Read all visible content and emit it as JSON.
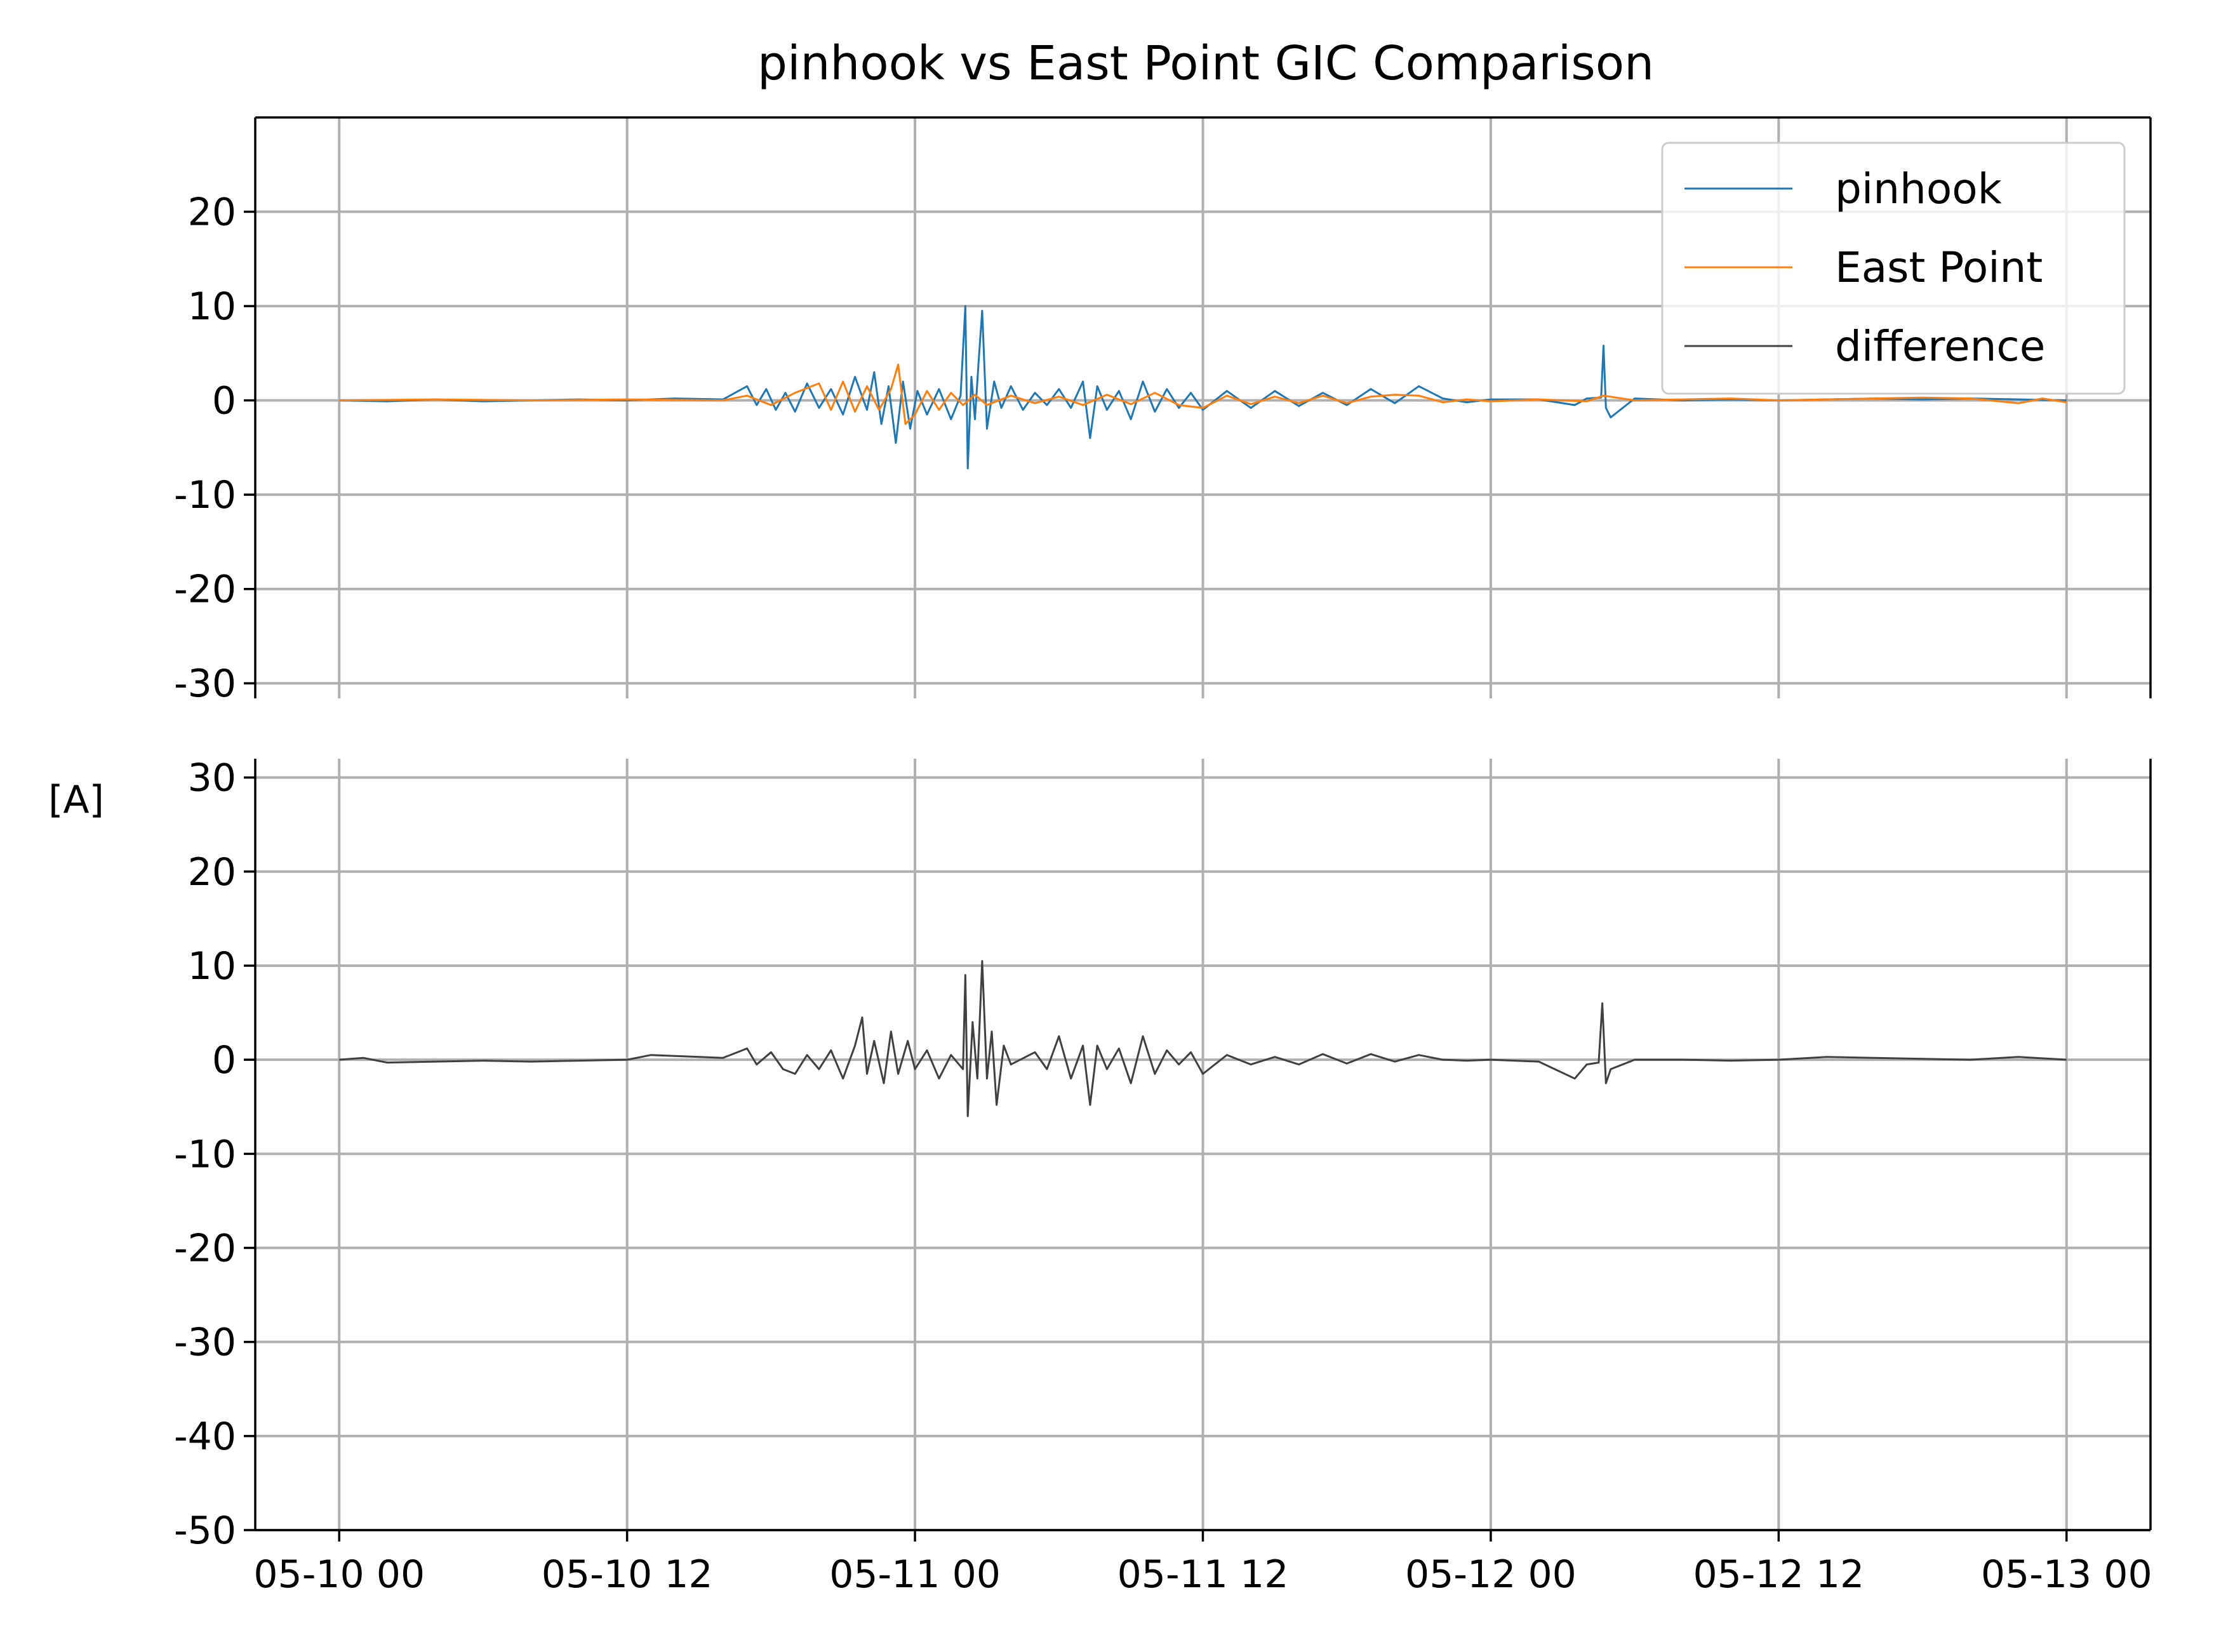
{
  "chart_data": {
    "type": "line",
    "title": "pinhook vs East Point GIC Comparison",
    "ylabel": "[A]",
    "xlabel": "",
    "x_unit": "hours since 05-10 00",
    "x_range": [
      -3.5,
      75.5
    ],
    "x_ticks": [
      {
        "x": 0,
        "label": "05-10 00"
      },
      {
        "x": 12,
        "label": "05-10 12"
      },
      {
        "x": 24,
        "label": "05-11 00"
      },
      {
        "x": 36,
        "label": "05-11 12"
      },
      {
        "x": 48,
        "label": "05-12 00"
      },
      {
        "x": 60,
        "label": "05-12 12"
      },
      {
        "x": 72,
        "label": "05-13 00"
      }
    ],
    "grid": true,
    "legend_position": "top-right",
    "panels": [
      {
        "name": "top",
        "ylim": [
          -30,
          30
        ],
        "yticks": [
          20,
          10,
          0,
          -10,
          -20,
          -30
        ],
        "ytick_labels": [
          "20",
          "10",
          "0",
          "-10",
          "-20",
          "-30"
        ],
        "legend": [
          "pinhook",
          "East Point",
          "difference"
        ],
        "series": [
          {
            "name": "pinhook",
            "color": "#1f77b4",
            "points": [
              [
                0,
                0.0
              ],
              [
                2,
                -0.1
              ],
              [
                4,
                0.1
              ],
              [
                6,
                -0.1
              ],
              [
                8,
                0.0
              ],
              [
                10,
                0.1
              ],
              [
                12,
                0.0
              ],
              [
                14,
                0.2
              ],
              [
                16,
                0.1
              ],
              [
                17,
                1.5
              ],
              [
                17.4,
                -0.5
              ],
              [
                17.8,
                1.2
              ],
              [
                18.2,
                -1.0
              ],
              [
                18.6,
                0.8
              ],
              [
                19,
                -1.2
              ],
              [
                19.5,
                1.8
              ],
              [
                20,
                -0.8
              ],
              [
                20.5,
                1.2
              ],
              [
                21,
                -1.5
              ],
              [
                21.5,
                2.5
              ],
              [
                22,
                -1.0
              ],
              [
                22.3,
                3.0
              ],
              [
                22.6,
                -2.5
              ],
              [
                22.9,
                1.5
              ],
              [
                23.2,
                -4.5
              ],
              [
                23.5,
                2.0
              ],
              [
                23.8,
                -3.0
              ],
              [
                24.1,
                1.0
              ],
              [
                24.5,
                -1.5
              ],
              [
                25,
                1.2
              ],
              [
                25.5,
                -2.0
              ],
              [
                25.9,
                0.5
              ],
              [
                26.1,
                10.0
              ],
              [
                26.2,
                -7.2
              ],
              [
                26.35,
                2.5
              ],
              [
                26.5,
                -2.0
              ],
              [
                26.65,
                4.0
              ],
              [
                26.8,
                9.5
              ],
              [
                27.0,
                -3.0
              ],
              [
                27.3,
                2.0
              ],
              [
                27.6,
                -0.8
              ],
              [
                28,
                1.5
              ],
              [
                28.5,
                -1.0
              ],
              [
                29,
                0.8
              ],
              [
                29.5,
                -0.5
              ],
              [
                30,
                1.2
              ],
              [
                30.5,
                -0.8
              ],
              [
                31,
                2.0
              ],
              [
                31.3,
                -4.0
              ],
              [
                31.6,
                1.5
              ],
              [
                32,
                -1.0
              ],
              [
                32.5,
                1.0
              ],
              [
                33,
                -2.0
              ],
              [
                33.5,
                2.0
              ],
              [
                34,
                -1.2
              ],
              [
                34.5,
                1.2
              ],
              [
                35,
                -0.8
              ],
              [
                35.5,
                0.8
              ],
              [
                36,
                -1.0
              ],
              [
                37,
                1.0
              ],
              [
                38,
                -0.8
              ],
              [
                39,
                1.0
              ],
              [
                40,
                -0.6
              ],
              [
                41,
                0.8
              ],
              [
                42,
                -0.5
              ],
              [
                43,
                1.2
              ],
              [
                44,
                -0.3
              ],
              [
                45,
                1.5
              ],
              [
                46,
                0.2
              ],
              [
                47,
                -0.2
              ],
              [
                48,
                0.1
              ],
              [
                50,
                0.1
              ],
              [
                51.5,
                -0.5
              ],
              [
                52,
                0.2
              ],
              [
                52.6,
                0.3
              ],
              [
                52.7,
                5.8
              ],
              [
                52.8,
                -0.8
              ],
              [
                53,
                -1.8
              ],
              [
                54,
                0.2
              ],
              [
                56,
                0.0
              ],
              [
                58,
                0.1
              ],
              [
                60,
                0.0
              ],
              [
                62,
                0.1
              ],
              [
                64,
                0.2
              ],
              [
                66,
                0.1
              ],
              [
                68,
                0.2
              ],
              [
                70,
                0.1
              ],
              [
                72,
                0.0
              ]
            ]
          },
          {
            "name": "East Point",
            "color": "#ff7f0e",
            "points": [
              [
                0,
                0.0
              ],
              [
                4,
                0.1
              ],
              [
                8,
                0.0
              ],
              [
                12,
                0.1
              ],
              [
                16,
                0.0
              ],
              [
                17,
                0.5
              ],
              [
                18,
                -0.5
              ],
              [
                19,
                0.8
              ],
              [
                20,
                1.8
              ],
              [
                20.5,
                -1.0
              ],
              [
                21,
                2.0
              ],
              [
                21.5,
                -1.2
              ],
              [
                22,
                1.5
              ],
              [
                22.5,
                -1.0
              ],
              [
                23,
                1.2
              ],
              [
                23.3,
                3.8
              ],
              [
                23.6,
                -2.5
              ],
              [
                24,
                -1.5
              ],
              [
                24.5,
                1.0
              ],
              [
                25,
                -1.0
              ],
              [
                25.5,
                0.8
              ],
              [
                26,
                -0.5
              ],
              [
                26.5,
                0.6
              ],
              [
                27,
                -0.5
              ],
              [
                28,
                0.5
              ],
              [
                29,
                -0.3
              ],
              [
                30,
                0.4
              ],
              [
                31,
                -0.5
              ],
              [
                32,
                0.6
              ],
              [
                33,
                -0.4
              ],
              [
                34,
                0.8
              ],
              [
                35,
                -0.5
              ],
              [
                36,
                -0.8
              ],
              [
                37,
                0.5
              ],
              [
                38,
                -0.4
              ],
              [
                39,
                0.4
              ],
              [
                40,
                -0.3
              ],
              [
                41,
                0.5
              ],
              [
                42,
                -0.3
              ],
              [
                43,
                0.4
              ],
              [
                44,
                0.6
              ],
              [
                45,
                0.5
              ],
              [
                46,
                -0.2
              ],
              [
                47,
                0.1
              ],
              [
                48,
                -0.1
              ],
              [
                50,
                0.1
              ],
              [
                52,
                -0.1
              ],
              [
                52.7,
                0.5
              ],
              [
                54,
                0.0
              ],
              [
                56,
                0.1
              ],
              [
                58,
                0.2
              ],
              [
                60,
                0.0
              ],
              [
                62,
                0.1
              ],
              [
                64,
                0.2
              ],
              [
                66,
                0.3
              ],
              [
                68,
                0.2
              ],
              [
                70,
                -0.3
              ],
              [
                71,
                0.2
              ],
              [
                72,
                -0.2
              ]
            ]
          }
        ]
      },
      {
        "name": "bottom",
        "ylim": [
          -50,
          30
        ],
        "yticks": [
          30,
          20,
          10,
          0,
          -10,
          -20,
          -30,
          -40,
          -50
        ],
        "ytick_labels": [
          "30",
          "20",
          "10",
          "0",
          "-10",
          "-20",
          "-30",
          "-40",
          "-50"
        ],
        "series": [
          {
            "name": "difference",
            "color": "#404040",
            "points": [
              [
                0,
                0.0
              ],
              [
                1,
                0.2
              ],
              [
                2,
                -0.3
              ],
              [
                4,
                -0.2
              ],
              [
                6,
                -0.1
              ],
              [
                8,
                -0.2
              ],
              [
                10,
                -0.1
              ],
              [
                12,
                0.0
              ],
              [
                13,
                0.5
              ],
              [
                14,
                0.4
              ],
              [
                16,
                0.2
              ],
              [
                17,
                1.2
              ],
              [
                17.4,
                -0.5
              ],
              [
                18,
                0.8
              ],
              [
                18.5,
                -1.0
              ],
              [
                19,
                -1.5
              ],
              [
                19.5,
                0.5
              ],
              [
                20,
                -1.0
              ],
              [
                20.5,
                1.0
              ],
              [
                21,
                -2.0
              ],
              [
                21.5,
                1.5
              ],
              [
                21.8,
                4.5
              ],
              [
                22,
                -1.5
              ],
              [
                22.3,
                2.0
              ],
              [
                22.7,
                -2.5
              ],
              [
                23,
                3.0
              ],
              [
                23.3,
                -1.5
              ],
              [
                23.7,
                2.0
              ],
              [
                24,
                -1.0
              ],
              [
                24.5,
                1.0
              ],
              [
                25,
                -2.0
              ],
              [
                25.5,
                0.5
              ],
              [
                26,
                -1.0
              ],
              [
                26.1,
                9.0
              ],
              [
                26.2,
                -6.0
              ],
              [
                26.4,
                4.0
              ],
              [
                26.6,
                -2.0
              ],
              [
                26.8,
                10.5
              ],
              [
                27.0,
                -2.0
              ],
              [
                27.2,
                3.0
              ],
              [
                27.4,
                -4.8
              ],
              [
                27.7,
                1.5
              ],
              [
                28,
                -0.5
              ],
              [
                29,
                0.8
              ],
              [
                29.5,
                -1.0
              ],
              [
                30,
                2.5
              ],
              [
                30.5,
                -2.0
              ],
              [
                31,
                1.5
              ],
              [
                31.3,
                -4.8
              ],
              [
                31.6,
                1.5
              ],
              [
                32,
                -1.0
              ],
              [
                32.5,
                1.2
              ],
              [
                33,
                -2.5
              ],
              [
                33.5,
                2.5
              ],
              [
                34,
                -1.5
              ],
              [
                34.5,
                1.0
              ],
              [
                35,
                -0.5
              ],
              [
                35.5,
                0.8
              ],
              [
                36,
                -1.5
              ],
              [
                37,
                0.5
              ],
              [
                38,
                -0.5
              ],
              [
                39,
                0.3
              ],
              [
                40,
                -0.5
              ],
              [
                41,
                0.6
              ],
              [
                42,
                -0.4
              ],
              [
                43,
                0.6
              ],
              [
                44,
                -0.2
              ],
              [
                45,
                0.5
              ],
              [
                46,
                0.0
              ],
              [
                47,
                -0.1
              ],
              [
                48,
                0.0
              ],
              [
                50,
                -0.2
              ],
              [
                51.5,
                -2.0
              ],
              [
                52,
                -0.5
              ],
              [
                52.5,
                -0.3
              ],
              [
                52.65,
                6.0
              ],
              [
                52.8,
                -2.5
              ],
              [
                53,
                -1.0
              ],
              [
                54,
                0.0
              ],
              [
                56,
                0.0
              ],
              [
                58,
                -0.1
              ],
              [
                60,
                0.0
              ],
              [
                62,
                0.3
              ],
              [
                64,
                0.2
              ],
              [
                66,
                0.1
              ],
              [
                68,
                0.0
              ],
              [
                70,
                0.3
              ],
              [
                72,
                0.0
              ]
            ]
          }
        ]
      }
    ]
  }
}
